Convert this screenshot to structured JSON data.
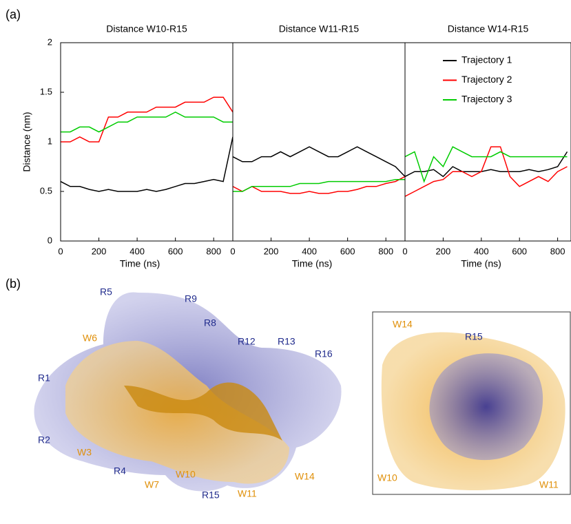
{
  "panel_labels": [
    "(a)",
    "(b)"
  ],
  "chart_data": [
    {
      "type": "line",
      "title": "Distance W10-R15",
      "x_label": "Time (ns)",
      "y_label": "Distance (nm)",
      "x": [
        0,
        50,
        100,
        150,
        200,
        250,
        300,
        350,
        400,
        450,
        500,
        550,
        600,
        650,
        700,
        750,
        800,
        850,
        900
      ],
      "series": [
        {
          "name": "Trajectory 1",
          "color": "#000000",
          "values": [
            0.6,
            0.55,
            0.55,
            0.52,
            0.5,
            0.52,
            0.5,
            0.5,
            0.5,
            0.52,
            0.5,
            0.52,
            0.55,
            0.58,
            0.58,
            0.6,
            0.62,
            0.6,
            1.05
          ]
        },
        {
          "name": "Trajectory 2",
          "color": "#ff0000",
          "values": [
            1.0,
            1.0,
            1.05,
            1.0,
            1.0,
            1.25,
            1.25,
            1.3,
            1.3,
            1.3,
            1.35,
            1.35,
            1.35,
            1.4,
            1.4,
            1.4,
            1.45,
            1.45,
            1.3
          ]
        },
        {
          "name": "Trajectory 3",
          "color": "#00cc00",
          "values": [
            1.1,
            1.1,
            1.15,
            1.15,
            1.1,
            1.15,
            1.2,
            1.2,
            1.25,
            1.25,
            1.25,
            1.25,
            1.3,
            1.25,
            1.25,
            1.25,
            1.25,
            1.2,
            1.2
          ]
        }
      ],
      "xlim": [
        0,
        900
      ],
      "xticks": [
        0,
        200,
        400,
        600,
        800
      ],
      "ylim": [
        0,
        2
      ],
      "yticks": [
        0,
        0.5,
        1,
        1.5,
        2
      ]
    },
    {
      "type": "line",
      "title": "Distance W11-R15",
      "x_label": "Time (ns)",
      "x": [
        0,
        50,
        100,
        150,
        200,
        250,
        300,
        350,
        400,
        450,
        500,
        550,
        600,
        650,
        700,
        750,
        800,
        850,
        900
      ],
      "series": [
        {
          "name": "Trajectory 1",
          "color": "#000000",
          "values": [
            0.85,
            0.8,
            0.8,
            0.85,
            0.85,
            0.9,
            0.85,
            0.9,
            0.95,
            0.9,
            0.85,
            0.85,
            0.9,
            0.95,
            0.9,
            0.85,
            0.8,
            0.75,
            0.65
          ]
        },
        {
          "name": "Trajectory 2",
          "color": "#ff0000",
          "values": [
            0.55,
            0.5,
            0.55,
            0.5,
            0.5,
            0.5,
            0.48,
            0.48,
            0.5,
            0.48,
            0.48,
            0.5,
            0.5,
            0.52,
            0.55,
            0.55,
            0.58,
            0.6,
            0.65
          ]
        },
        {
          "name": "Trajectory 3",
          "color": "#00cc00",
          "values": [
            0.5,
            0.5,
            0.55,
            0.55,
            0.55,
            0.55,
            0.55,
            0.58,
            0.58,
            0.58,
            0.6,
            0.6,
            0.6,
            0.6,
            0.6,
            0.6,
            0.6,
            0.62,
            0.62
          ]
        }
      ],
      "xlim": [
        0,
        900
      ],
      "xticks": [
        0,
        200,
        400,
        600,
        800
      ],
      "ylim": [
        0,
        2
      ]
    },
    {
      "type": "line",
      "title": "Distance W14-R15",
      "x_label": "Time (ns)",
      "legend": "upper right",
      "x": [
        0,
        50,
        100,
        150,
        200,
        250,
        300,
        350,
        400,
        450,
        500,
        550,
        600,
        650,
        700,
        750,
        800,
        850
      ],
      "series": [
        {
          "name": "Trajectory 1",
          "color": "#000000",
          "values": [
            0.65,
            0.7,
            0.7,
            0.72,
            0.65,
            0.75,
            0.7,
            0.7,
            0.7,
            0.72,
            0.7,
            0.7,
            0.7,
            0.72,
            0.7,
            0.72,
            0.75,
            0.9
          ]
        },
        {
          "name": "Trajectory 2",
          "color": "#ff0000",
          "values": [
            0.45,
            0.5,
            0.55,
            0.6,
            0.62,
            0.7,
            0.7,
            0.65,
            0.7,
            0.95,
            0.95,
            0.65,
            0.55,
            0.6,
            0.65,
            0.6,
            0.7,
            0.75
          ]
        },
        {
          "name": "Trajectory 3",
          "color": "#00cc00",
          "values": [
            0.85,
            0.9,
            0.6,
            0.85,
            0.75,
            0.95,
            0.9,
            0.85,
            0.85,
            0.85,
            0.9,
            0.85,
            0.85,
            0.85,
            0.85,
            0.85,
            0.85,
            0.85
          ]
        }
      ],
      "xlim": [
        0,
        870
      ],
      "xticks": [
        0,
        200,
        400,
        600,
        800
      ],
      "ylim": [
        0,
        2
      ]
    }
  ],
  "structure": {
    "labels": [
      "R5",
      "R9",
      "R8",
      "W6",
      "R12",
      "R13",
      "R16",
      "R1",
      "R2",
      "W3",
      "R4",
      "W7",
      "W10",
      "R15",
      "W11",
      "W14"
    ]
  },
  "inset": {
    "labels": [
      "W14",
      "R15",
      "W10",
      "W11"
    ]
  }
}
